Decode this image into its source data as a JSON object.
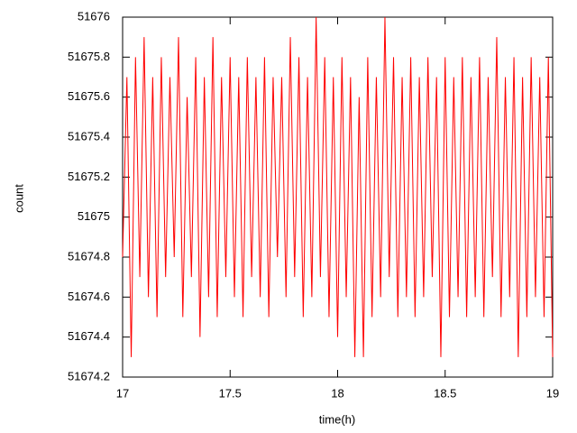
{
  "chart_data": {
    "type": "line",
    "xlabel": "time(h)",
    "ylabel": "count",
    "x": [
      17,
      17.02,
      17.04,
      17.06,
      17.08,
      17.1,
      17.12,
      17.14,
      17.16,
      17.18,
      17.2,
      17.22,
      17.24,
      17.26,
      17.28,
      17.3,
      17.32,
      17.34,
      17.36,
      17.38,
      17.4,
      17.42,
      17.44,
      17.46,
      17.48,
      17.5,
      17.52,
      17.54,
      17.56,
      17.58,
      17.6,
      17.62,
      17.64,
      17.66,
      17.68,
      17.7,
      17.72,
      17.74,
      17.76,
      17.78,
      17.8,
      17.82,
      17.84,
      17.86,
      17.88,
      17.9,
      17.92,
      17.94,
      17.96,
      17.98,
      18,
      18.02,
      18.04,
      18.06,
      18.08,
      18.1,
      18.12,
      18.14,
      18.16,
      18.18,
      18.2,
      18.22,
      18.24,
      18.26,
      18.28,
      18.3,
      18.32,
      18.34,
      18.36,
      18.38,
      18.4,
      18.42,
      18.44,
      18.46,
      18.48,
      18.5,
      18.52,
      18.54,
      18.56,
      18.58,
      18.6,
      18.62,
      18.64,
      18.66,
      18.68,
      18.7,
      18.72,
      18.74,
      18.76,
      18.78,
      18.8,
      18.82,
      18.84,
      18.86,
      18.88,
      18.9,
      18.92,
      18.94,
      18.96,
      18.98,
      19
    ],
    "series": [
      {
        "color": "#ff0000",
        "values": [
          51674.8,
          51675.7,
          51674.3,
          51675.8,
          51674.7,
          51675.9,
          51674.6,
          51675.7,
          51674.5,
          51675.8,
          51674.7,
          51675.7,
          51674.8,
          51675.9,
          51674.5,
          51675.6,
          51674.7,
          51675.8,
          51674.4,
          51675.7,
          51674.6,
          51675.9,
          51674.5,
          51675.7,
          51674.7,
          51675.8,
          51674.6,
          51675.7,
          51674.5,
          51675.8,
          51674.7,
          51675.7,
          51674.6,
          51675.8,
          51674.5,
          51675.7,
          51674.8,
          51675.7,
          51674.6,
          51675.9,
          51674.7,
          51675.8,
          51674.5,
          51675.7,
          51674.6,
          51676,
          51674.7,
          51675.8,
          51674.5,
          51675.7,
          51674.4,
          51675.8,
          51674.6,
          51675.7,
          51674.3,
          51675.6,
          51674.3,
          51675.8,
          51674.5,
          51675.7,
          51674.6,
          51676,
          51674.7,
          51675.8,
          51674.5,
          51675.7,
          51674.6,
          51675.8,
          51674.5,
          51675.7,
          51674.6,
          51675.8,
          51674.7,
          51675.7,
          51674.3,
          51675.8,
          51674.5,
          51675.7,
          51674.6,
          51675.8,
          51674.5,
          51675.7,
          51674.6,
          51675.8,
          51674.5,
          51675.7,
          51674.7,
          51675.9,
          51674.5,
          51675.7,
          51674.6,
          51675.8,
          51674.3,
          51675.7,
          51674.5,
          51675.8,
          51674.6,
          51675.7,
          51674.5,
          51675.8,
          51674.3
        ]
      }
    ],
    "xlim": [
      17,
      19
    ],
    "xticks": [
      17,
      17.5,
      18,
      18.5,
      19
    ],
    "ylim": [
      51674.2,
      51676
    ],
    "yticks": [
      51674.2,
      51674.4,
      51674.6,
      51674.8,
      51675,
      51675.2,
      51675.4,
      51675.6,
      51675.8,
      51676
    ],
    "grid": false
  }
}
